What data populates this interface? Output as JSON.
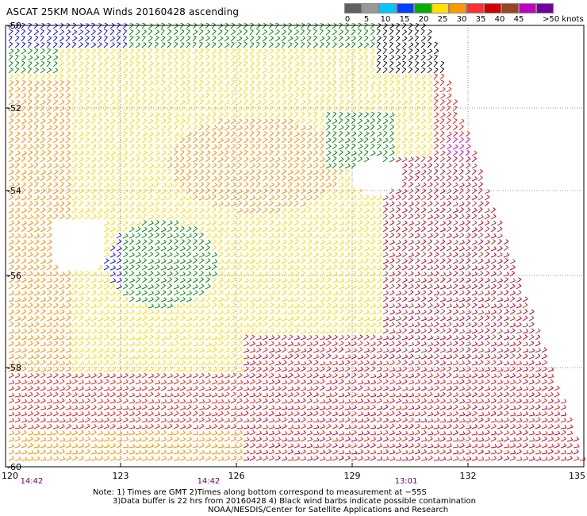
{
  "title": "ASCAT 25KM NOAA Winds 20160428 ascending",
  "colorbar": {
    "labels": [
      "0",
      "5",
      "10",
      "15",
      "20",
      "25",
      "30",
      "35",
      "40",
      "45",
      ">50 knots"
    ],
    "colors": [
      "#606060",
      "#989898",
      "#00c8ff",
      "#0040ff",
      "#00b000",
      "#ffe000",
      "#ff9900",
      "#ff3030",
      "#d00000",
      "#994422",
      "#c000c0",
      "#7000a0"
    ]
  },
  "axes": {
    "lat_labels": [
      "-50",
      "-52",
      "-54",
      "-56",
      "-58",
      "-60"
    ],
    "lon_labels": [
      "120",
      "123",
      "126",
      "129",
      "132",
      "135"
    ],
    "time_labels": [
      "14:42",
      "14:42",
      "13:01"
    ]
  },
  "notes": {
    "line1": "Note: 1) Times are GMT 2)Times along bottom correspond to measurement at −55S",
    "line2": "3)Data buffer is 22 hrs from 20160428 4) Black wind barbs indicate possible contamination",
    "line3": "NOAA/NESDIS/Center for Satellite Applications and Research"
  }
}
